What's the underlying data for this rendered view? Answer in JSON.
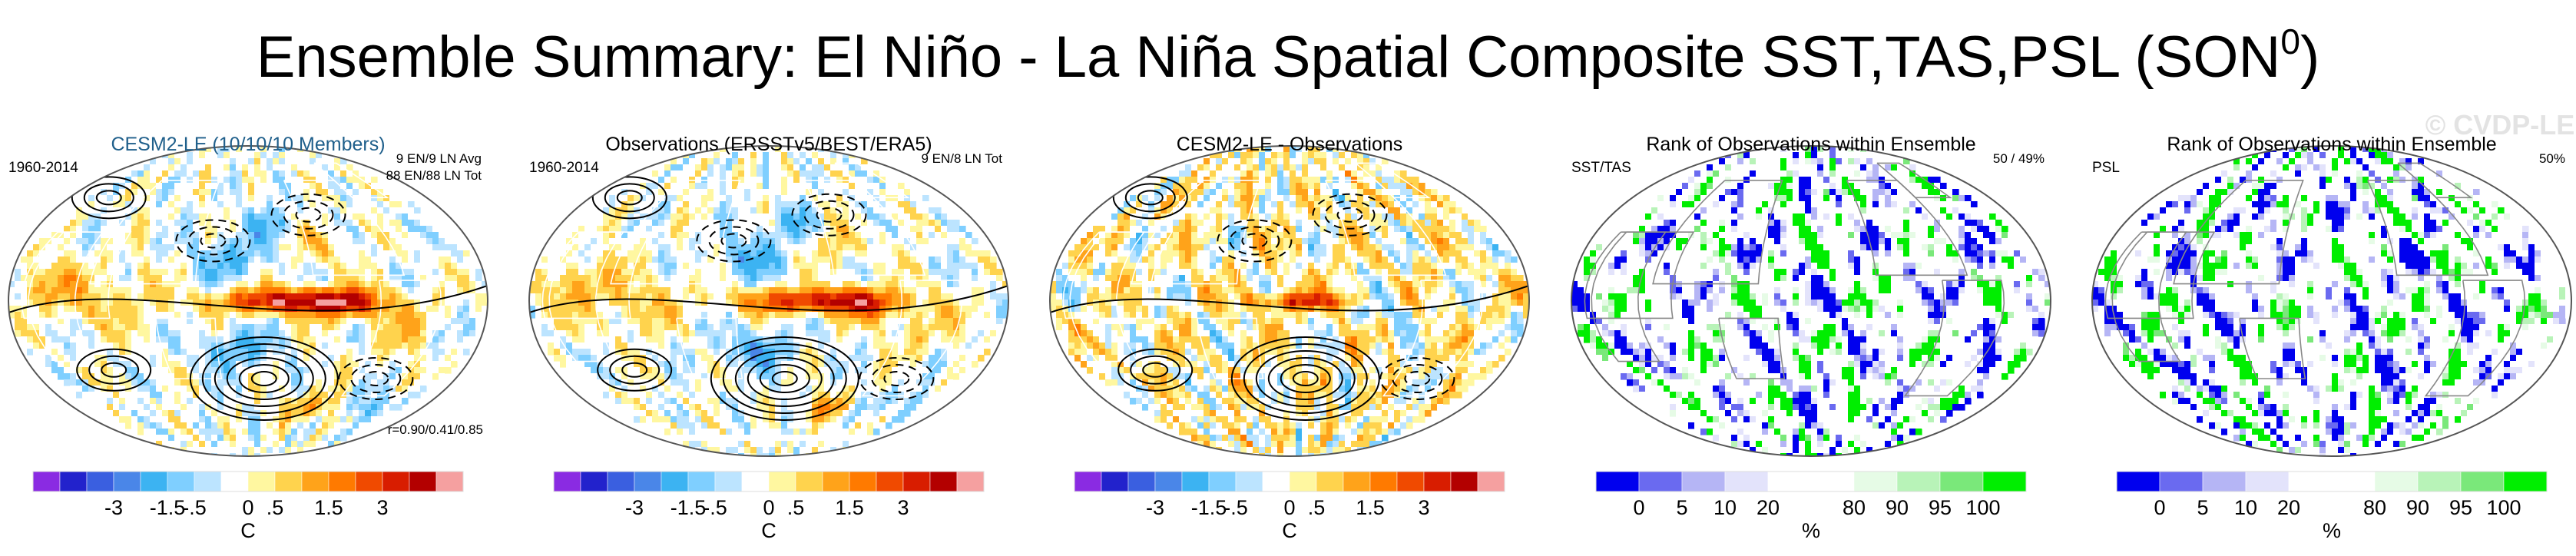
{
  "title_main": "Ensemble Summary: El Niño - La Niña Spatial Composite SST,TAS,PSL (SON",
  "title_sup": "0",
  "title_close": ")",
  "watermark": "© CVDP-LE",
  "colors": {
    "land_line": "#ffffff",
    "ocean_outline": "#555555",
    "contour": "#000000",
    "title": "#000000",
    "panel1_title": "#1f5f8b"
  },
  "chart_data": [
    {
      "type": "heatmap",
      "title": "CESM2-LE (10/10/10 Members)",
      "left_label": "1960-2014",
      "right_labels": [
        "9 EN/9 LN Avg",
        "88 EN/88 LN Tot"
      ],
      "bottom_label": "r=0.90/0.41/0.85",
      "colorbar": {
        "tick_labels": [
          "-3",
          "-1.5",
          "-.5",
          "0",
          ".5",
          "1.5",
          "3"
        ],
        "unit": "C",
        "colors": [
          "#8a2be2",
          "#2222cc",
          "#3a5fe0",
          "#4a86e8",
          "#3cb3f2",
          "#7fcfff",
          "#bce4ff",
          "#ffffff",
          "#fff7a0",
          "#ffd34d",
          "#ffa31a",
          "#ff7a00",
          "#f04a00",
          "#d81d00",
          "#b30000",
          "#f5a0a0"
        ]
      },
      "field": "sst_tas_ensemble"
    },
    {
      "type": "heatmap",
      "title": "Observations (ERSSTv5/BEST/ERA5)",
      "left_label": "1960-2014",
      "right_labels": [
        "9 EN/8 LN Tot"
      ],
      "bottom_label": "",
      "colorbar": {
        "tick_labels": [
          "-3",
          "-1.5",
          "-.5",
          "0",
          ".5",
          "1.5",
          "3"
        ],
        "unit": "C",
        "colors": [
          "#8a2be2",
          "#2222cc",
          "#3a5fe0",
          "#4a86e8",
          "#3cb3f2",
          "#7fcfff",
          "#bce4ff",
          "#ffffff",
          "#fff7a0",
          "#ffd34d",
          "#ffa31a",
          "#ff7a00",
          "#f04a00",
          "#d81d00",
          "#b30000",
          "#f5a0a0"
        ]
      },
      "field": "sst_tas_obs"
    },
    {
      "type": "heatmap",
      "title": "CESM2-LE - Observations",
      "left_label": "",
      "right_labels": [],
      "bottom_label": "",
      "colorbar": {
        "tick_labels": [
          "-3",
          "-1.5",
          "-.5",
          "0",
          ".5",
          "1.5",
          "3"
        ],
        "unit": "C",
        "colors": [
          "#8a2be2",
          "#2222cc",
          "#3a5fe0",
          "#4a86e8",
          "#3cb3f2",
          "#7fcfff",
          "#bce4ff",
          "#ffffff",
          "#fff7a0",
          "#ffd34d",
          "#ffa31a",
          "#ff7a00",
          "#f04a00",
          "#d81d00",
          "#b30000",
          "#f5a0a0"
        ]
      },
      "field": "difference"
    },
    {
      "type": "heatmap",
      "title": "Rank of Observations within Ensemble",
      "left_label": "SST/TAS",
      "right_labels": [
        "50 /  49%"
      ],
      "bottom_label": "",
      "colorbar": {
        "tick_labels": [
          "0",
          "5",
          "10",
          "20",
          "80",
          "90",
          "95",
          "100"
        ],
        "unit": "%",
        "colors": [
          "#0000ee",
          "#6a6af0",
          "#b5b5f5",
          "#e3e3fb",
          "#ffffff",
          "#ffffff",
          "#e6fbe6",
          "#b8f3b8",
          "#7ae87a",
          "#00ee00"
        ]
      },
      "field": "rank_sst_tas"
    },
    {
      "type": "heatmap",
      "title": "Rank of Observations within Ensemble",
      "left_label": "PSL",
      "right_labels": [
        "50%"
      ],
      "bottom_label": "",
      "colorbar": {
        "tick_labels": [
          "0",
          "5",
          "10",
          "20",
          "80",
          "90",
          "95",
          "100"
        ],
        "unit": "%",
        "colors": [
          "#0000ee",
          "#6a6af0",
          "#b5b5f5",
          "#e3e3fb",
          "#ffffff",
          "#ffffff",
          "#e6fbe6",
          "#b8f3b8",
          "#7ae87a",
          "#00ee00"
        ]
      },
      "field": "rank_psl"
    }
  ]
}
